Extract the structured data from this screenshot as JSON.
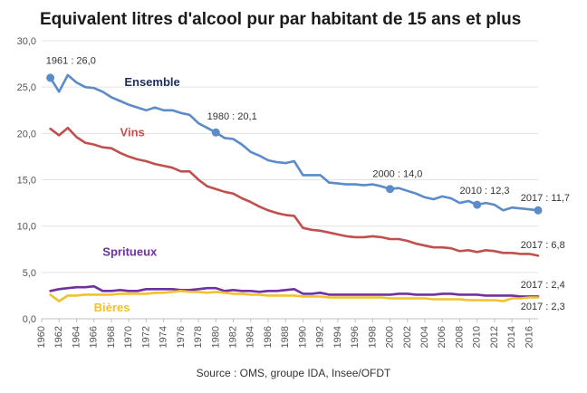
{
  "chart_data": {
    "type": "line",
    "title": "Equivalent litres d'alcool pur par habitant de 15 ans et plus",
    "source": "Source : OMS, groupe IDA, Insee/OFDT",
    "xlabel": "",
    "ylabel": "",
    "xlim": [
      1960,
      2017
    ],
    "ylim": [
      0,
      30
    ],
    "x_ticks": [
      "1960",
      "1962",
      "1964",
      "1966",
      "1968",
      "1970",
      "1972",
      "1974",
      "1976",
      "1978",
      "1980",
      "1982",
      "1984",
      "1986",
      "1988",
      "1990",
      "1992",
      "1994",
      "1996",
      "1998",
      "2000",
      "2002",
      "2004",
      "2006",
      "2008",
      "2010",
      "2012",
      "2014",
      "2016"
    ],
    "y_ticks": [
      "0,0",
      "5,0",
      "10,0",
      "15,0",
      "20,0",
      "25,0",
      "30,0"
    ],
    "grid": "horizontal",
    "x": [
      1961,
      1962,
      1963,
      1964,
      1965,
      1966,
      1967,
      1968,
      1969,
      1970,
      1971,
      1972,
      1973,
      1974,
      1975,
      1976,
      1977,
      1978,
      1979,
      1980,
      1981,
      1982,
      1983,
      1984,
      1985,
      1986,
      1987,
      1988,
      1989,
      1990,
      1991,
      1992,
      1993,
      1994,
      1995,
      1996,
      1997,
      1998,
      1999,
      2000,
      2001,
      2002,
      2003,
      2004,
      2005,
      2006,
      2007,
      2008,
      2009,
      2010,
      2011,
      2012,
      2013,
      2014,
      2015,
      2016,
      2017
    ],
    "series": [
      {
        "name": "Ensemble",
        "color": "#5B8BC9",
        "label_color": "#1F2D5C",
        "values": [
          26.0,
          24.5,
          26.3,
          25.5,
          25.0,
          24.9,
          24.5,
          23.9,
          23.5,
          23.1,
          22.8,
          22.5,
          22.8,
          22.5,
          22.5,
          22.2,
          22.0,
          21.1,
          20.6,
          20.1,
          19.5,
          19.4,
          18.8,
          18.0,
          17.6,
          17.1,
          16.9,
          16.8,
          17.0,
          15.5,
          15.5,
          15.5,
          14.7,
          14.6,
          14.5,
          14.5,
          14.4,
          14.5,
          14.3,
          14.0,
          14.1,
          13.8,
          13.5,
          13.1,
          12.9,
          13.2,
          13.0,
          12.5,
          12.7,
          12.3,
          12.5,
          12.3,
          11.7,
          12.0,
          11.9,
          11.8,
          11.7
        ]
      },
      {
        "name": "Vins",
        "color": "#C0504D",
        "label_color": "#C0504D",
        "values": [
          20.5,
          19.8,
          20.6,
          19.6,
          19.0,
          18.8,
          18.5,
          18.4,
          17.9,
          17.5,
          17.2,
          17.0,
          16.7,
          16.5,
          16.3,
          15.9,
          15.9,
          15.0,
          14.3,
          14.0,
          13.7,
          13.5,
          13.0,
          12.6,
          12.1,
          11.7,
          11.4,
          11.2,
          11.1,
          9.8,
          9.6,
          9.5,
          9.3,
          9.1,
          8.9,
          8.8,
          8.8,
          8.9,
          8.8,
          8.6,
          8.6,
          8.4,
          8.1,
          7.9,
          7.7,
          7.7,
          7.6,
          7.3,
          7.4,
          7.2,
          7.4,
          7.3,
          7.1,
          7.1,
          7.0,
          7.0,
          6.8
        ]
      },
      {
        "name": "Spritueux",
        "color": "#7030A0",
        "label_color": "#7030A0",
        "values": [
          3.0,
          3.2,
          3.3,
          3.4,
          3.4,
          3.5,
          3.0,
          3.0,
          3.1,
          3.0,
          3.0,
          3.2,
          3.2,
          3.2,
          3.2,
          3.1,
          3.1,
          3.2,
          3.3,
          3.3,
          3.0,
          3.1,
          3.0,
          3.0,
          2.9,
          3.0,
          3.0,
          3.1,
          3.2,
          2.7,
          2.7,
          2.8,
          2.6,
          2.6,
          2.6,
          2.6,
          2.6,
          2.6,
          2.6,
          2.6,
          2.7,
          2.7,
          2.6,
          2.6,
          2.6,
          2.7,
          2.7,
          2.6,
          2.6,
          2.6,
          2.5,
          2.5,
          2.5,
          2.5,
          2.4,
          2.4,
          2.4
        ]
      },
      {
        "name": "Bières",
        "color": "#F2C12E",
        "label_color": "#F2C12E",
        "values": [
          2.6,
          1.9,
          2.5,
          2.5,
          2.6,
          2.6,
          2.6,
          2.6,
          2.7,
          2.7,
          2.7,
          2.7,
          2.8,
          2.8,
          2.9,
          3.0,
          2.9,
          2.9,
          2.8,
          2.9,
          2.8,
          2.7,
          2.7,
          2.6,
          2.6,
          2.5,
          2.5,
          2.5,
          2.5,
          2.4,
          2.4,
          2.4,
          2.3,
          2.3,
          2.3,
          2.3,
          2.3,
          2.3,
          2.3,
          2.2,
          2.2,
          2.2,
          2.2,
          2.2,
          2.1,
          2.1,
          2.1,
          2.1,
          2.0,
          2.0,
          2.0,
          2.0,
          1.9,
          2.2,
          2.2,
          2.3,
          2.3
        ]
      }
    ],
    "series_labels": [
      {
        "series": "Ensemble",
        "text": "Ensemble",
        "x": 1969.5,
        "y": 25.1
      },
      {
        "series": "Vins",
        "text": "Vins",
        "x": 1969.0,
        "y": 19.7
      },
      {
        "series": "Spritueux",
        "text": "Spritueux",
        "x": 1967.0,
        "y": 6.8
      },
      {
        "series": "Bières",
        "text": "Bières",
        "x": 1966.0,
        "y": 0.8
      }
    ],
    "annotations": [
      {
        "text": "1961 : 26,0",
        "x": 1961,
        "y": 26.0,
        "marker": true,
        "series": "Ensemble",
        "tx": 1960.5,
        "ty": 27.5
      },
      {
        "text": "1980 : 20,1",
        "x": 1980,
        "y": 20.1,
        "marker": true,
        "series": "Ensemble",
        "tx": 1979.0,
        "ty": 21.5
      },
      {
        "text": "2000 : 14,0",
        "x": 2000,
        "y": 14.0,
        "marker": true,
        "series": "Ensemble",
        "tx": 1998.0,
        "ty": 15.3
      },
      {
        "text": "2010 : 12,3",
        "x": 2010,
        "y": 12.3,
        "marker": true,
        "series": "Ensemble",
        "tx": 2008.0,
        "ty": 13.5
      },
      {
        "text": "2017 : 11,7",
        "x": 2017,
        "y": 11.7,
        "marker": true,
        "series": "Ensemble",
        "tx": 2015.0,
        "ty": 12.7
      },
      {
        "text": "2017 : 6,8",
        "x": 2017,
        "y": 6.8,
        "marker": false,
        "series": "Vins",
        "tx": 2015.0,
        "ty": 7.6
      },
      {
        "text": "2017 : 2,4",
        "x": 2017,
        "y": 2.4,
        "marker": false,
        "series": "Spritueux",
        "tx": 2015.0,
        "ty": 3.3
      },
      {
        "text": "2017 : 2,3",
        "x": 2017,
        "y": 2.3,
        "marker": false,
        "series": "Bières",
        "tx": 2015.0,
        "ty": 1.0
      }
    ]
  }
}
